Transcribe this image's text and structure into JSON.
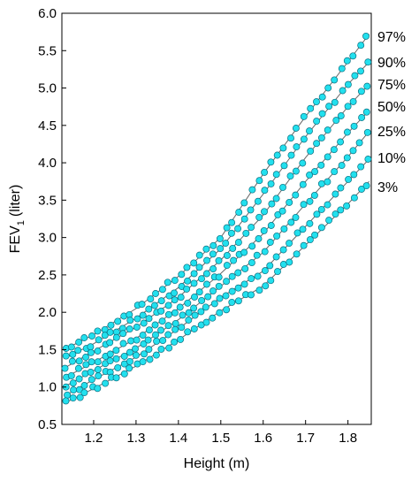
{
  "chart_data": {
    "type": "scatter",
    "xlabel": "Height (m)",
    "ylabel": "FEV",
    "ylabel_sub": "1",
    "ylabel_unit": "(liter)",
    "xlim": [
      1.125,
      1.855
    ],
    "ylim": [
      0.5,
      6.0
    ],
    "x_ticks": [
      1.2,
      1.3,
      1.4,
      1.5,
      1.6,
      1.7,
      1.8
    ],
    "x_tick_labels": [
      "1.2",
      "1.3",
      "1.4",
      "1.5",
      "1.6",
      "1.7",
      "1.8"
    ],
    "y_ticks": [
      0.5,
      1.0,
      1.5,
      2.0,
      2.5,
      3.0,
      3.5,
      4.0,
      4.5,
      5.0,
      5.5,
      6.0
    ],
    "y_tick_labels": [
      "0.5",
      "1.0",
      "1.5",
      "2.0",
      "2.5",
      "3.0",
      "3.5",
      "4.0",
      "4.5",
      "5.0",
      "5.5",
      "6.0"
    ],
    "grid": false,
    "marker_color": "#22e0ee",
    "marker_edge": "#0b6f80",
    "line_color": "#666666",
    "x": [
      1.13,
      1.2,
      1.3,
      1.4,
      1.5,
      1.6,
      1.7,
      1.8,
      1.85
    ],
    "series": [
      {
        "name": "97%",
        "values": [
          1.5,
          1.7,
          2.05,
          2.48,
          3.0,
          3.85,
          4.62,
          5.35,
          5.72
        ]
      },
      {
        "name": "90%",
        "values": [
          1.38,
          1.58,
          1.92,
          2.33,
          2.85,
          3.58,
          4.35,
          5.05,
          5.35
        ]
      },
      {
        "name": "75%",
        "values": [
          1.25,
          1.48,
          1.8,
          2.2,
          2.7,
          3.3,
          4.07,
          4.75,
          5.05
        ]
      },
      {
        "name": "50%",
        "values": [
          1.12,
          1.33,
          1.65,
          2.05,
          2.52,
          3.05,
          3.75,
          4.4,
          4.7
        ]
      },
      {
        "name": "25%",
        "values": [
          1.0,
          1.22,
          1.52,
          1.9,
          2.35,
          2.8,
          3.45,
          4.08,
          4.42
        ]
      },
      {
        "name": "10%",
        "values": [
          0.88,
          1.1,
          1.4,
          1.78,
          2.2,
          2.55,
          3.15,
          3.75,
          4.05
        ]
      },
      {
        "name": "3%",
        "values": [
          0.78,
          0.98,
          1.28,
          1.63,
          2.02,
          2.35,
          2.9,
          3.45,
          3.75
        ]
      }
    ],
    "labels": [
      "97%",
      "90%",
      "75%",
      "50%",
      "25%",
      "10%",
      "3%"
    ]
  }
}
